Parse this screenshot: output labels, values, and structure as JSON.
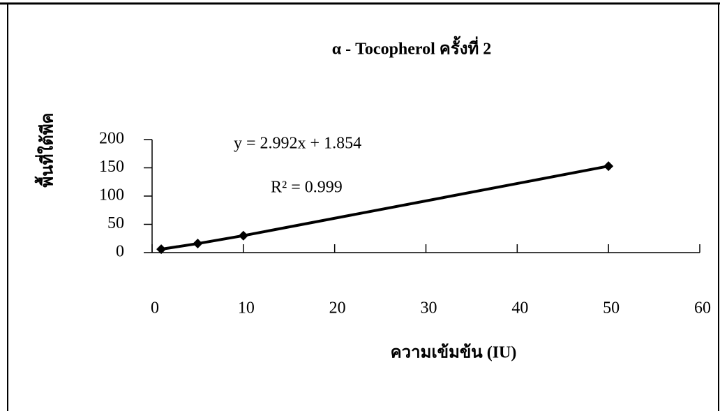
{
  "chart_data": {
    "type": "scatter",
    "title": "α - Tocopherol ครั้งที่ 2",
    "x_label": "ความเข้มข้น (IU)",
    "y_label": "พื้นที่ใต้พีค",
    "annotations": [
      "y = 2.992x + 1.854",
      "R² = 0.999"
    ],
    "x": [
      1,
      5,
      10,
      50
    ],
    "series": [
      {
        "name": "α - Tocopherol",
        "color": "#000000",
        "values": [
          6,
          16,
          30,
          153
        ]
      }
    ],
    "xlim": [
      0,
      60
    ],
    "xticks": [
      0,
      10,
      20,
      30,
      40,
      50,
      60
    ],
    "ylim": [
      0,
      200
    ],
    "yticks": [
      0,
      50,
      100,
      150,
      200
    ],
    "trendline": true
  }
}
